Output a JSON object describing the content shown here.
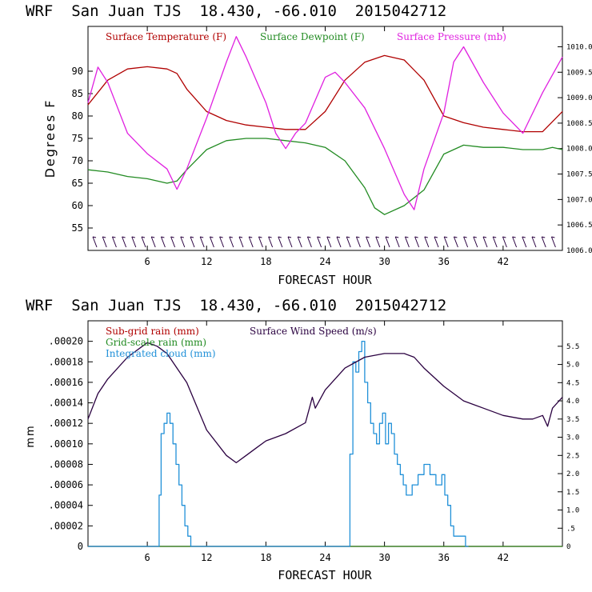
{
  "colors": {
    "temperature": "#b00000",
    "dewpoint": "#228b22",
    "pressure": "#e020e0",
    "wind": "#2a0040",
    "subgrid": "#b00000",
    "gridscale": "#228b22",
    "cloud": "#2090d8"
  },
  "chart_data": [
    {
      "type": "line",
      "header": "WRF  San Juan TJS  18.430, -66.010  2015042712",
      "xlabel": "FORECAST HOUR",
      "ylabel": "Degrees F",
      "xlim": [
        0,
        48
      ],
      "xticks": [
        6,
        12,
        18,
        24,
        30,
        36,
        42
      ],
      "ylim": [
        50,
        100
      ],
      "yticks": [
        55,
        60,
        65,
        70,
        75,
        80,
        85,
        90
      ],
      "y2lim": [
        1006.0,
        1010.4
      ],
      "y2ticks": [
        "1006.0",
        "1006.5",
        "1007.0",
        "1007.5",
        "1008.0",
        "1008.5",
        "1009.0",
        "1009.5",
        "1010.0"
      ],
      "wind_barbs": "present along bottom",
      "series": [
        {
          "name": "Surface Temperature (F)",
          "axis": "left",
          "x": [
            0,
            2,
            4,
            6,
            8,
            9,
            10,
            12,
            14,
            16,
            18,
            20,
            22,
            24,
            26,
            28,
            30,
            32,
            34,
            36,
            38,
            40,
            42,
            44,
            46,
            48
          ],
          "y": [
            82.5,
            88,
            90.5,
            91,
            90.5,
            89.5,
            86,
            81,
            79,
            78,
            77.5,
            77,
            77,
            81,
            88,
            92,
            93.5,
            92.5,
            88,
            80,
            78.5,
            77.5,
            77,
            76.5,
            76.5,
            81
          ]
        },
        {
          "name": "Surface Dewpoint (F)",
          "axis": "left",
          "x": [
            0,
            2,
            4,
            6,
            8,
            9,
            10,
            12,
            14,
            16,
            18,
            20,
            22,
            24,
            26,
            28,
            29,
            30,
            32,
            34,
            36,
            38,
            40,
            42,
            44,
            46,
            47,
            48
          ],
          "y": [
            68,
            67.5,
            66.5,
            66,
            65,
            65.5,
            68,
            72.5,
            74.5,
            75,
            75,
            74.5,
            74,
            73,
            70,
            64,
            59.5,
            58,
            60,
            63.5,
            71.5,
            73.5,
            73,
            73,
            72.5,
            72.5,
            73,
            72.5
          ]
        },
        {
          "name": "Surface Pressure (mb)",
          "axis": "right",
          "x": [
            0,
            1,
            2,
            4,
            6,
            8,
            9,
            10,
            12,
            14,
            15,
            16,
            18,
            19,
            20,
            21,
            22,
            24,
            25,
            26,
            28,
            30,
            32,
            33,
            34,
            36,
            37,
            38,
            40,
            42,
            44,
            46,
            48
          ],
          "y": [
            1008.9,
            1009.6,
            1009.3,
            1008.3,
            1007.9,
            1007.6,
            1007.2,
            1007.6,
            1008.6,
            1009.7,
            1010.2,
            1009.8,
            1008.9,
            1008.3,
            1008.0,
            1008.3,
            1008.5,
            1009.4,
            1009.5,
            1009.3,
            1008.8,
            1008.0,
            1007.1,
            1006.8,
            1007.6,
            1008.7,
            1009.7,
            1010.0,
            1009.3,
            1008.7,
            1008.3,
            1009.1,
            1009.8
          ]
        }
      ]
    },
    {
      "type": "line",
      "header": "WRF  San Juan TJS  18.430, -66.010  2015042712",
      "xlabel": "FORECAST HOUR",
      "ylabel": "mm",
      "xlim": [
        0,
        48
      ],
      "xticks": [
        6,
        12,
        18,
        24,
        30,
        36,
        42
      ],
      "ylim": [
        0,
        0.00022
      ],
      "yticks": [
        "0",
        ".00002",
        ".00004",
        ".00006",
        ".00008",
        ".00010",
        ".00012",
        ".00014",
        ".00016",
        ".00018",
        ".00020"
      ],
      "y2lim": [
        0,
        6.2
      ],
      "y2ticks": [
        "0",
        ".5",
        "1.0",
        "1.5",
        "2.0",
        "2.5",
        "3.0",
        "3.5",
        "4.0",
        "4.5",
        "5.0",
        "5.5"
      ],
      "series": [
        {
          "name": "Sub-grid rain (mm)",
          "axis": "left",
          "x": [
            0,
            48
          ],
          "y": [
            0,
            0
          ]
        },
        {
          "name": "Grid-scale rain (mm)",
          "axis": "left",
          "x": [
            0,
            48
          ],
          "y": [
            0,
            0
          ]
        },
        {
          "name": "Integrated cloud (mm)",
          "axis": "left",
          "step": true,
          "x": [
            0,
            7.2,
            7.4,
            7.7,
            8.0,
            8.3,
            8.6,
            8.9,
            9.2,
            9.5,
            9.8,
            10.1,
            10.4,
            10.7,
            11.0,
            26.5,
            26.8,
            27.1,
            27.4,
            27.7,
            28.0,
            28.3,
            28.6,
            28.9,
            29.2,
            29.5,
            29.8,
            30.1,
            30.4,
            30.7,
            31.0,
            31.3,
            31.6,
            31.9,
            32.2,
            32.8,
            33.4,
            34.0,
            34.6,
            35.2,
            35.8,
            36.1,
            36.4,
            36.7,
            37.0,
            37.3,
            37.6,
            37.9,
            38.2,
            38.5
          ],
          "y": [
            0,
            5e-05,
            0.00011,
            0.00012,
            0.00013,
            0.00012,
            0.0001,
            8e-05,
            6e-05,
            4e-05,
            2e-05,
            1e-05,
            0,
            0,
            0,
            9e-05,
            0.00018,
            0.00017,
            0.00019,
            0.0002,
            0.00016,
            0.00014,
            0.00012,
            0.00011,
            0.0001,
            0.00012,
            0.00013,
            0.0001,
            0.00012,
            0.00011,
            9e-05,
            8e-05,
            7e-05,
            6e-05,
            5e-05,
            6e-05,
            7e-05,
            8e-05,
            7e-05,
            6e-05,
            7e-05,
            5e-05,
            4e-05,
            2e-05,
            1e-05,
            1e-05,
            1e-05,
            1e-05,
            0,
            0
          ]
        },
        {
          "name": "Surface Wind Speed (m/s)",
          "axis": "right",
          "x": [
            0,
            1,
            2,
            4,
            6,
            7,
            8,
            10,
            12,
            14,
            15,
            16,
            17,
            18,
            20,
            22,
            22.5,
            22.7,
            23,
            24,
            26,
            28,
            30,
            32,
            33,
            34,
            36,
            38,
            40,
            42,
            44,
            45,
            46,
            46.5,
            47,
            48
          ],
          "y": [
            3.5,
            4.2,
            4.6,
            5.2,
            5.6,
            5.5,
            5.3,
            4.5,
            3.2,
            2.5,
            2.3,
            2.5,
            2.7,
            2.9,
            3.1,
            3.4,
            3.9,
            4.1,
            3.8,
            4.3,
            4.9,
            5.2,
            5.3,
            5.3,
            5.2,
            4.9,
            4.4,
            4.0,
            3.8,
            3.6,
            3.5,
            3.5,
            3.6,
            3.3,
            3.8,
            4.1
          ]
        }
      ]
    }
  ]
}
